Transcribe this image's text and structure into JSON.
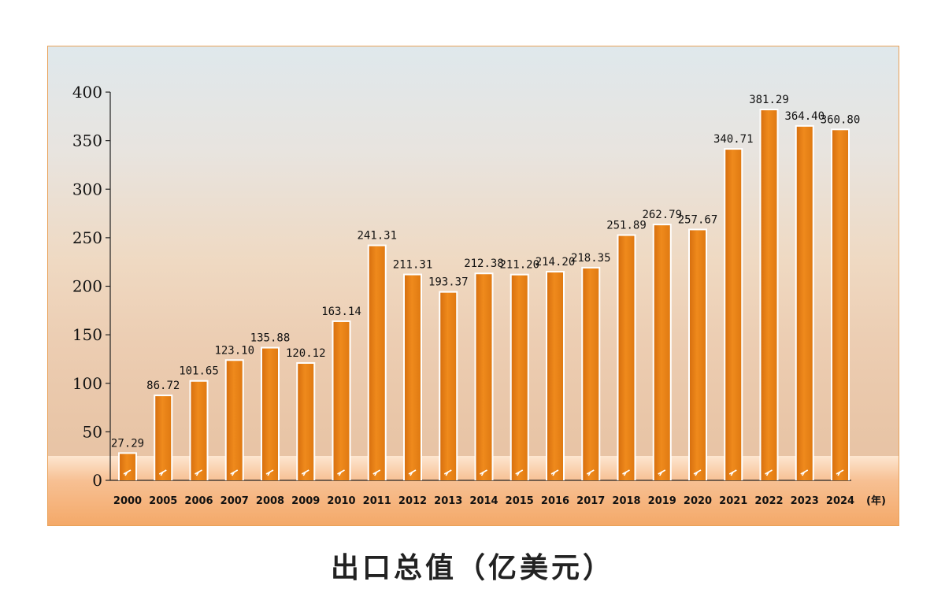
{
  "chart_data": {
    "type": "bar",
    "title": "出口总值（亿美元）",
    "x_unit_label": "(年)",
    "categories": [
      "2000",
      "2005",
      "2006",
      "2007",
      "2008",
      "2009",
      "2010",
      "2011",
      "2012",
      "2013",
      "2014",
      "2015",
      "2016",
      "2017",
      "2018",
      "2019",
      "2020",
      "2021",
      "2022",
      "2023",
      "2024"
    ],
    "values": [
      27.29,
      86.72,
      101.65,
      123.1,
      135.88,
      120.12,
      163.14,
      241.31,
      211.31,
      193.37,
      212.38,
      211.2,
      214.2,
      218.35,
      251.89,
      262.79,
      257.67,
      340.71,
      381.29,
      364.4,
      360.8
    ],
    "value_labels": [
      "27.29",
      "86.72",
      "101.65",
      "123.10",
      "135.88",
      "120.12",
      "163.14",
      "241.31",
      "211.31",
      "193.37",
      "212.38",
      "211.20",
      "214.20",
      "218.35",
      "251.89",
      "262.79",
      "257.67",
      "340.71",
      "381.29",
      "364.40",
      "360.80"
    ],
    "y_ticks": [
      "0",
      "50",
      "100",
      "150",
      "200",
      "250",
      "300",
      "350",
      "400"
    ],
    "ylim": [
      0,
      400
    ],
    "grid": false,
    "colors": {
      "bar": "#ef8a1c",
      "bar_edge": "#ffffff",
      "band": "#f4a867"
    }
  }
}
